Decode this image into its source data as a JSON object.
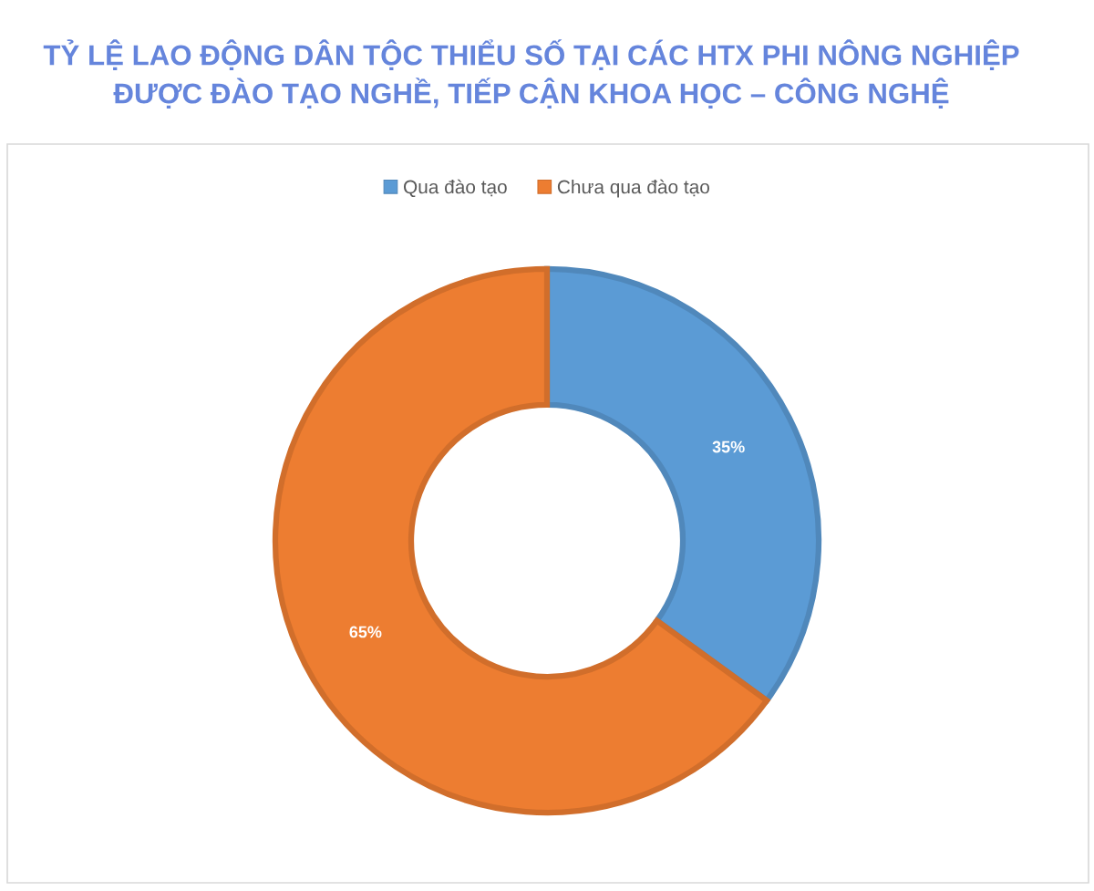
{
  "chart_data": {
    "type": "donut",
    "title": "TỶ LỆ LAO ĐỘNG DÂN TỘC THIỂU SỐ TẠI CÁC HTX PHI NÔNG NGHIỆP\nĐƯỢC ĐÀO TẠO NGHỀ, TIẾP CẬN KHOA HỌC – CÔNG NGHỆ",
    "categories": [
      "Qua đào tạo",
      "Chưa qua đào tạo"
    ],
    "values": [
      35,
      65
    ],
    "colors": [
      "#5b9bd5",
      "#ed7d31"
    ],
    "value_labels": [
      "35%",
      "65%"
    ],
    "legend": "top"
  }
}
